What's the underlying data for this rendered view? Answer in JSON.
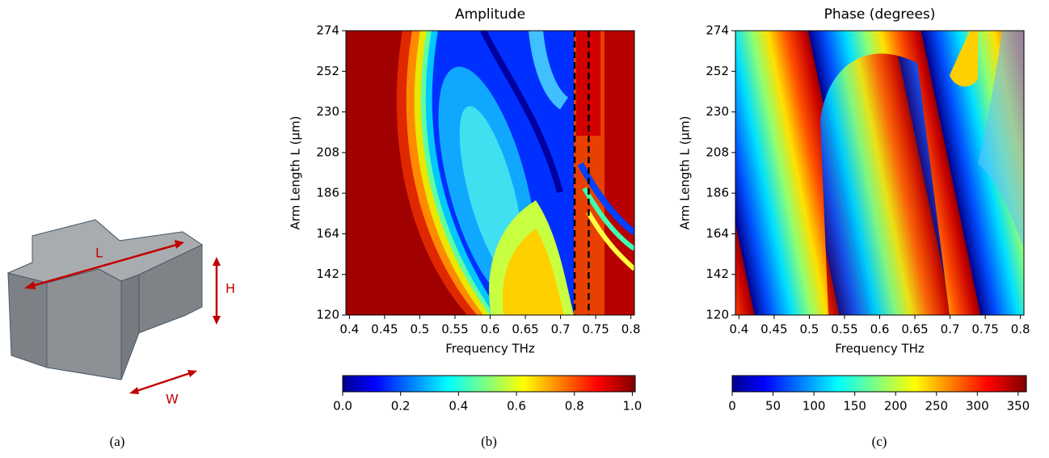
{
  "schematic": {
    "caption": "(a)",
    "length_label": "L",
    "height_label": "H",
    "width_label": "W"
  },
  "chart_data": [
    {
      "type": "heatmap",
      "title": "Amplitude",
      "x_label": "Frequency THz",
      "y_label": "Arm Length L (μm)",
      "xlim": [
        0.395,
        0.805
      ],
      "xticks": [
        0.4,
        0.45,
        0.5,
        0.55,
        0.6,
        0.65,
        0.7,
        0.75,
        0.8
      ],
      "ylim": [
        120,
        274
      ],
      "yticks": [
        120,
        142,
        164,
        186,
        208,
        230,
        252,
        274
      ],
      "colormap": "jet",
      "colorbar_lim": [
        0,
        1.01
      ],
      "colorbar_ticks": [
        {
          "value": 0,
          "label": "0.0"
        },
        0.2,
        0.4,
        0.6,
        0.8,
        {
          "value": 1,
          "label": "1.0"
        }
      ],
      "vlines": [
        0.72,
        0.74
      ],
      "caption": "(b)"
    },
    {
      "type": "heatmap",
      "title": "Phase (degrees)",
      "x_label": "Frequency THz",
      "y_label": "Arm Length L (μm)",
      "xlim": [
        0.395,
        0.805
      ],
      "xticks": [
        0.4,
        0.45,
        0.5,
        0.55,
        0.6,
        0.65,
        0.7,
        0.75,
        0.8
      ],
      "ylim": [
        120,
        274
      ],
      "yticks": [
        120,
        142,
        164,
        186,
        208,
        230,
        252,
        274
      ],
      "colormap": "jet",
      "colorbar_lim": [
        0,
        360
      ],
      "colorbar_ticks": [
        0,
        50,
        100,
        150,
        200,
        250,
        300,
        350
      ],
      "caption": "(c)"
    }
  ]
}
